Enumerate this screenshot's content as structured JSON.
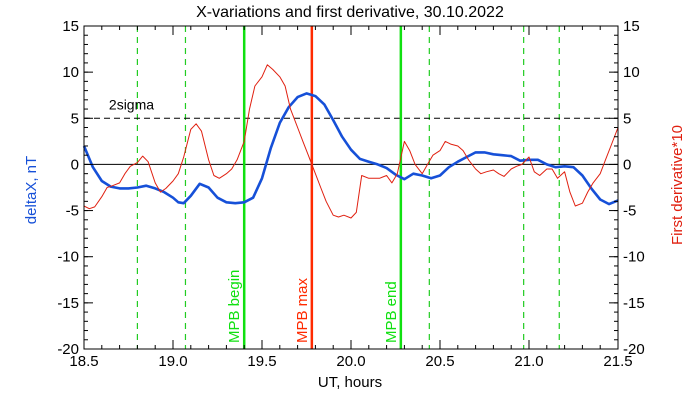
{
  "chart_data": {
    "type": "line",
    "title": "X-variations and first derivative, 30.10.2022",
    "xlabel": "UT, hours",
    "ylabel_left": "deltaX, nT",
    "ylabel_right": "First derivative*10",
    "xlim": [
      18.5,
      21.5
    ],
    "ylim": [
      -20,
      15
    ],
    "x_ticks": [
      "18.5",
      "19.0",
      "19.5",
      "20.0",
      "20.5",
      "21.0",
      "21.5"
    ],
    "y_ticks": [
      "15",
      "10",
      "5",
      "0",
      "-5",
      "-10",
      "-15",
      "-20"
    ],
    "grid": false,
    "colors": {
      "deltaX": "#1650d8",
      "derivative": "#e02010",
      "mpb_edges": "#10e010",
      "mpb_max": "#ff2a00",
      "dashed_green": "#22cc22"
    },
    "sigma_line": {
      "y": 5,
      "label": "2sigma"
    },
    "zero_line": {
      "y": 0
    },
    "markers": [
      {
        "x": 19.4,
        "label": "MPB begin",
        "color": "#10e010"
      },
      {
        "x": 19.78,
        "label": "MPB max",
        "color": "#ff2a00"
      },
      {
        "x": 20.28,
        "label": "MPB end",
        "color": "#10e010"
      }
    ],
    "dashed_markers": [
      18.8,
      19.07,
      20.44,
      20.97,
      21.17
    ],
    "series": [
      {
        "key": "deltaX",
        "x": [
          18.5,
          18.55,
          18.6,
          18.65,
          18.7,
          18.75,
          18.8,
          18.85,
          18.9,
          18.95,
          19.0,
          19.03,
          19.06,
          19.1,
          19.15,
          19.2,
          19.25,
          19.3,
          19.35,
          19.4,
          19.45,
          19.5,
          19.55,
          19.6,
          19.65,
          19.7,
          19.75,
          19.8,
          19.85,
          19.9,
          19.95,
          20.0,
          20.05,
          20.1,
          20.15,
          20.2,
          20.25,
          20.3,
          20.35,
          20.4,
          20.45,
          20.5,
          20.55,
          20.6,
          20.65,
          20.7,
          20.75,
          20.8,
          20.85,
          20.9,
          20.95,
          21.0,
          21.05,
          21.1,
          21.15,
          21.2,
          21.25,
          21.3,
          21.35,
          21.4,
          21.45,
          21.5
        ],
        "values": [
          2.0,
          -0.3,
          -1.8,
          -2.4,
          -2.6,
          -2.6,
          -2.5,
          -2.3,
          -2.6,
          -3.0,
          -3.6,
          -4.1,
          -4.2,
          -3.4,
          -2.1,
          -2.5,
          -3.6,
          -4.1,
          -4.2,
          -4.1,
          -3.6,
          -1.5,
          1.8,
          4.5,
          6.2,
          7.3,
          7.7,
          7.4,
          6.5,
          4.8,
          3.0,
          1.6,
          0.6,
          0.3,
          0.0,
          -0.4,
          -1.1,
          -1.6,
          -1.0,
          -1.2,
          -1.5,
          -1.2,
          -0.3,
          0.3,
          0.8,
          1.3,
          1.3,
          1.1,
          1.0,
          0.9,
          0.4,
          0.5,
          0.5,
          0.0,
          -0.3,
          -0.2,
          -0.3,
          -1.2,
          -2.6,
          -3.8,
          -4.3,
          -3.9
        ]
      },
      {
        "key": "derivative",
        "x": [
          18.5,
          18.53,
          18.56,
          18.6,
          18.63,
          18.66,
          18.7,
          18.73,
          18.76,
          18.8,
          18.83,
          18.86,
          18.9,
          18.93,
          18.96,
          19.0,
          19.03,
          19.06,
          19.1,
          19.13,
          19.16,
          19.2,
          19.23,
          19.26,
          19.3,
          19.33,
          19.36,
          19.4,
          19.43,
          19.46,
          19.5,
          19.53,
          19.56,
          19.6,
          19.63,
          19.66,
          19.7,
          19.73,
          19.76,
          19.8,
          19.83,
          19.86,
          19.9,
          19.93,
          19.96,
          20.0,
          20.03,
          20.06,
          20.1,
          20.13,
          20.16,
          20.2,
          20.23,
          20.26,
          20.3,
          20.33,
          20.36,
          20.4,
          20.43,
          20.46,
          20.5,
          20.53,
          20.56,
          20.6,
          20.63,
          20.66,
          20.7,
          20.73,
          20.76,
          20.8,
          20.83,
          20.86,
          20.9,
          20.93,
          20.96,
          21.0,
          21.03,
          21.06,
          21.1,
          21.13,
          21.16,
          21.2,
          21.23,
          21.26,
          21.3,
          21.33,
          21.36,
          21.4,
          21.43,
          21.46,
          21.5
        ],
        "values": [
          -4.5,
          -4.8,
          -4.6,
          -3.5,
          -2.5,
          -2.3,
          -2.0,
          -1.0,
          -0.2,
          0.2,
          0.9,
          0.3,
          -2.0,
          -3.0,
          -2.6,
          -1.8,
          -1.0,
          0.8,
          3.8,
          4.4,
          3.6,
          0.5,
          -1.2,
          -1.5,
          -1.0,
          -0.5,
          0.5,
          2.5,
          6.0,
          8.5,
          9.5,
          10.8,
          10.3,
          9.5,
          8.5,
          6.0,
          4.0,
          2.5,
          1.0,
          -1.0,
          -2.5,
          -4.0,
          -5.5,
          -5.7,
          -5.5,
          -5.8,
          -5.2,
          -1.2,
          -1.5,
          -1.5,
          -1.5,
          -1.2,
          -2.0,
          -1.0,
          2.5,
          1.5,
          0.0,
          -1.0,
          0.0,
          1.0,
          1.5,
          2.5,
          2.2,
          2.0,
          1.5,
          0.5,
          -0.5,
          -1.0,
          -0.8,
          -0.6,
          -1.0,
          -1.3,
          -0.5,
          -0.2,
          0.0,
          0.8,
          -0.8,
          -1.2,
          -0.5,
          -0.5,
          -1.5,
          -0.8,
          -3.0,
          -4.5,
          -4.2,
          -3.0,
          -2.0,
          -1.0,
          0.5,
          2.0,
          4.0
        ]
      }
    ]
  }
}
